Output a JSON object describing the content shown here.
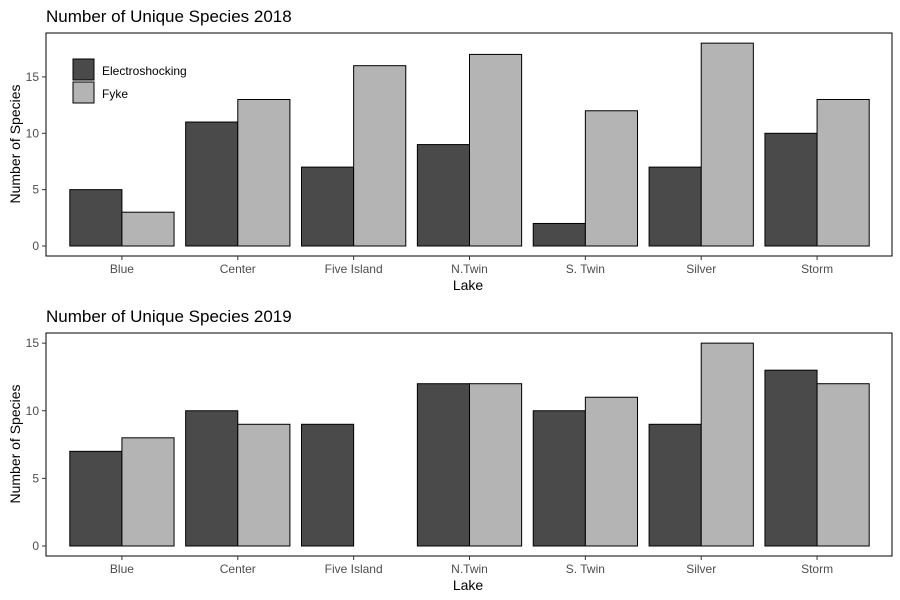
{
  "chart_data": [
    {
      "type": "bar",
      "title": "Number of Unique Species 2018",
      "xlabel": "Lake",
      "ylabel": "Number of Species",
      "categories": [
        "Blue",
        "Center",
        "Five Island",
        "N.Twin",
        "S. Twin",
        "Silver",
        "Storm"
      ],
      "series": [
        {
          "name": "Electroshocking",
          "color": "#4a4a4a",
          "values": [
            5,
            11,
            7,
            9,
            2,
            7,
            10
          ]
        },
        {
          "name": "Fyke",
          "color": "#b4b4b4",
          "values": [
            3,
            13,
            16,
            17,
            12,
            18,
            13
          ]
        }
      ],
      "yticks": [
        0,
        5,
        10,
        15
      ],
      "ylim": [
        0,
        18.9
      ],
      "grid": false,
      "legend": "top-left"
    },
    {
      "type": "bar",
      "title": "Number of Unique Species 2019",
      "xlabel": "Lake",
      "ylabel": "Number of Species",
      "categories": [
        "Blue",
        "Center",
        "Five Island",
        "N.Twin",
        "S. Twin",
        "Silver",
        "Storm"
      ],
      "series": [
        {
          "name": "Electroshocking",
          "color": "#4a4a4a",
          "values": [
            7,
            10,
            9,
            12,
            10,
            9,
            13
          ]
        },
        {
          "name": "Fyke",
          "color": "#b4b4b4",
          "values": [
            8,
            9,
            null,
            12,
            11,
            15,
            12
          ]
        }
      ],
      "yticks": [
        0,
        5,
        10,
        15
      ],
      "ylim": [
        0,
        15.75
      ],
      "grid": false,
      "legend": "none"
    }
  ]
}
